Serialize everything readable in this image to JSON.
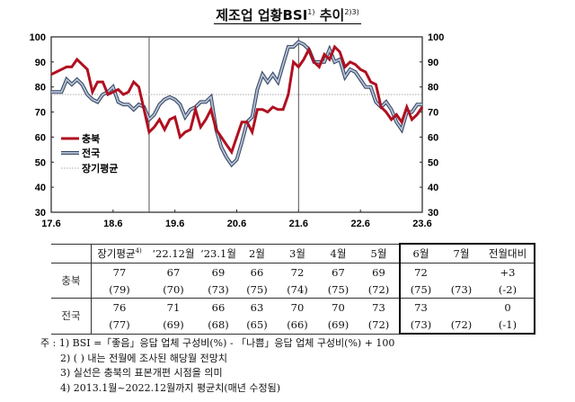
{
  "chart_data": {
    "type": "line",
    "title": "제조업 업황BSI",
    "title_sup1": "1)",
    "title_sup2": "2)3)",
    "x_ticks": [
      "17.6",
      "18.6",
      "19.6",
      "20.6",
      "21.6",
      "22.6",
      "23.6"
    ],
    "x_start": "2017.6",
    "x_end": "2023.6",
    "ylim": [
      30,
      100
    ],
    "y_ticks": [
      30,
      40,
      50,
      60,
      70,
      80,
      90,
      100
    ],
    "y_axis_right": true,
    "grid": false,
    "legend_placement": "center-left",
    "reference_lines": [
      {
        "name": "장기평균",
        "value": 77,
        "style": "dotted",
        "color": "#aaaaaa"
      }
    ],
    "vertical_markers": [
      "2019.1",
      "2021.6"
    ],
    "series": [
      {
        "name": "충북",
        "color": "#b01020",
        "values": [
          85,
          86,
          87,
          88,
          88,
          91,
          89,
          87,
          78,
          82,
          82,
          77,
          78,
          79,
          77,
          78,
          82,
          80,
          71,
          62,
          64,
          67,
          63,
          67,
          68,
          60,
          62,
          63,
          71,
          64,
          67,
          71,
          63,
          60,
          57,
          54,
          60,
          66,
          66,
          62,
          71,
          71,
          70,
          72,
          71,
          71,
          77,
          90,
          88,
          91,
          95,
          90,
          88,
          93,
          91,
          96,
          94,
          88,
          90,
          89,
          87,
          86,
          82,
          81,
          72,
          70,
          67,
          69,
          66,
          72,
          67,
          69,
          72
        ]
      },
      {
        "name": "전국",
        "color": "#6a7d9c",
        "values": [
          78,
          78,
          78,
          83,
          81,
          83,
          81,
          77,
          75,
          74,
          77,
          78,
          80,
          74,
          73,
          73,
          71,
          73,
          72,
          67,
          69,
          73,
          75,
          76,
          75,
          73,
          68,
          71,
          72,
          74,
          74,
          76,
          63,
          56,
          52,
          49,
          51,
          58,
          66,
          68,
          79,
          85,
          82,
          85,
          82,
          89,
          96,
          96,
          98,
          97,
          95,
          90,
          90,
          90,
          95,
          90,
          91,
          84,
          87,
          86,
          83,
          80,
          80,
          74,
          72,
          74,
          71,
          66,
          63,
          70,
          70,
          73,
          73
        ]
      }
    ]
  },
  "table": {
    "headers": [
      "",
      "장기평균",
      "‘22.12월",
      "‘23.1월",
      "2월",
      "3월",
      "4월",
      "5월",
      "6월",
      "7월",
      "전월대비"
    ],
    "header_sup": "4)",
    "rows": [
      {
        "label": "충북",
        "actual": [
          "77",
          "67",
          "69",
          "66",
          "72",
          "67",
          "69",
          "72",
          "",
          "+3"
        ],
        "forecast": [
          "(79)",
          "(70)",
          "(73)",
          "(75)",
          "(74)",
          "(75)",
          "(72)",
          "(75)",
          "(73)",
          "(-2)"
        ]
      },
      {
        "label": "전국",
        "actual": [
          "76",
          "71",
          "66",
          "63",
          "70",
          "70",
          "73",
          "73",
          "",
          "0"
        ],
        "forecast": [
          "(77)",
          "(69)",
          "(68)",
          "(65)",
          "(66)",
          "(69)",
          "(72)",
          "(73)",
          "(72)",
          "(-1)"
        ]
      }
    ]
  },
  "notes": [
    "주 : 1) BSI =「좋음」응답 업체 구성비(%) - 「나쁨」응답 업체 구성비(%) + 100",
    "2) ( ) 내는 전월에 조사된 해당월 전망치",
    "3) 실선은 충북의 표본개편 시점을 의미",
    "4) 2013.1월~2022.12월까지 평균치(매년 수정됨)"
  ]
}
